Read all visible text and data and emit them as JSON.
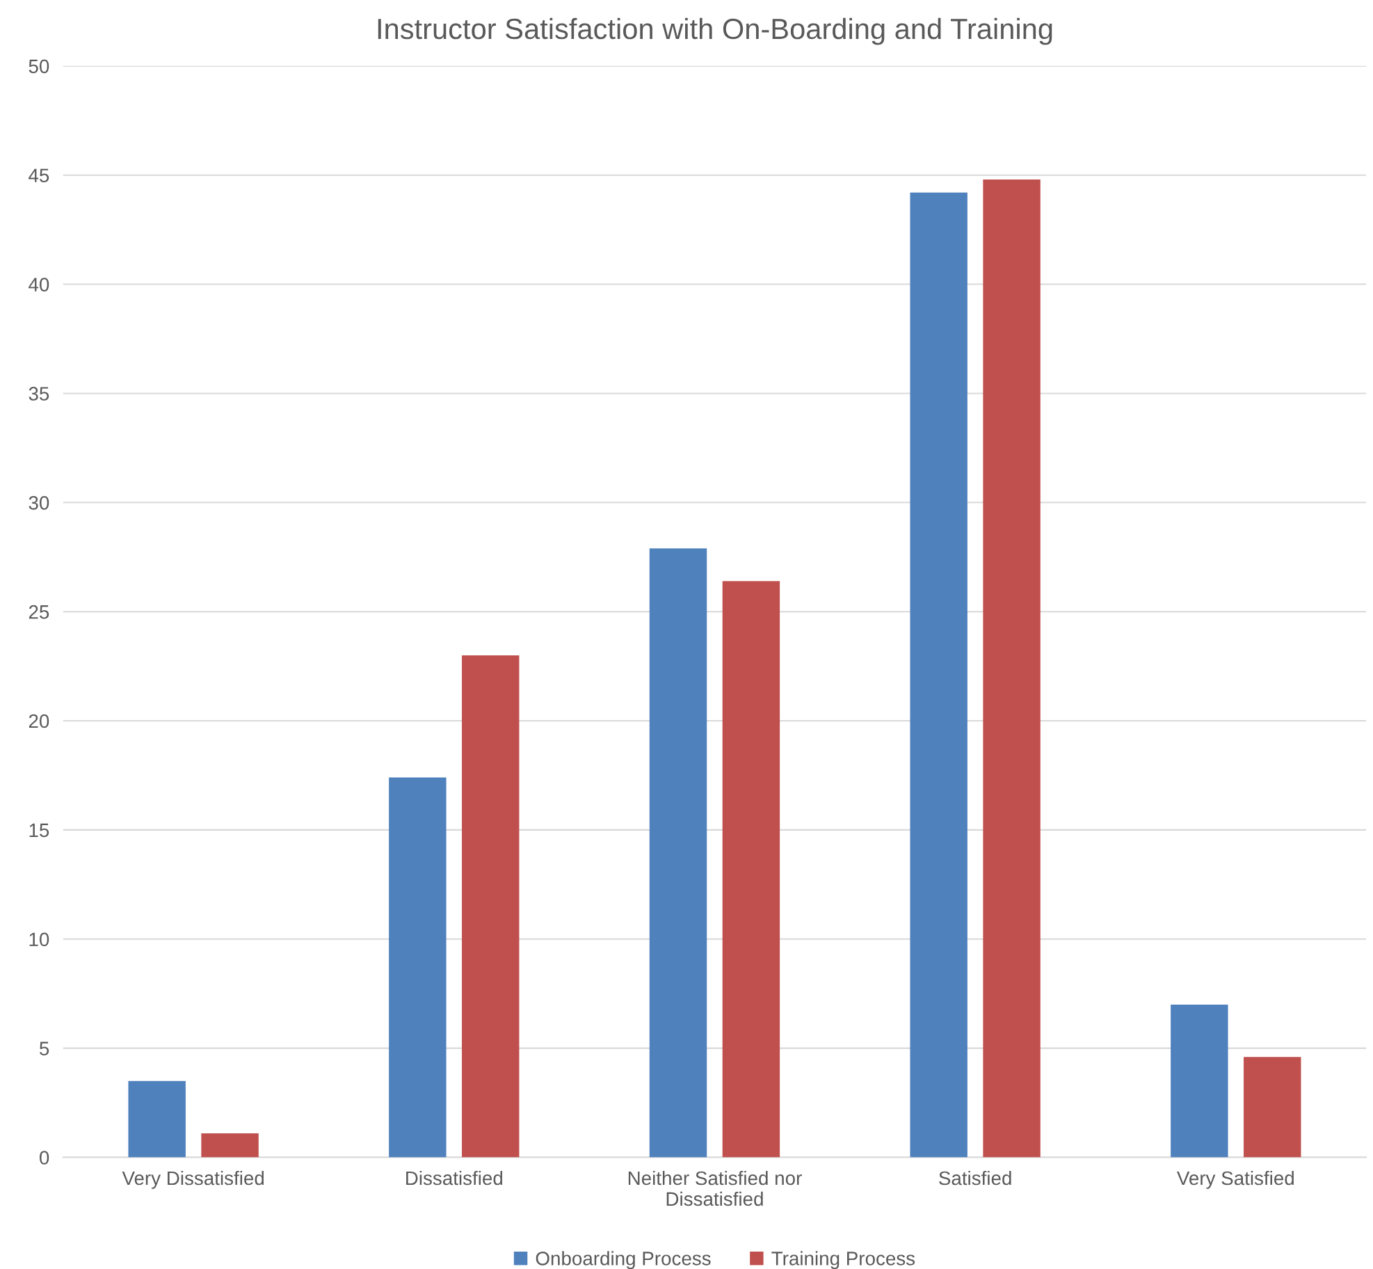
{
  "chart_data": {
    "type": "bar",
    "title": "Instructor Satisfaction with On-Boarding and Training",
    "categories": [
      "Very Dissatisfied",
      "Dissatisfied",
      "Neither Satisfied nor Dissatisfied",
      "Satisfied",
      "Very Satisfied"
    ],
    "series": [
      {
        "name": "Onboarding Process",
        "color": "#4f81bd",
        "values": [
          3.5,
          17.4,
          27.9,
          44.2,
          7.0
        ]
      },
      {
        "name": "Training Process",
        "color": "#c0504d",
        "values": [
          1.1,
          23.0,
          26.4,
          44.8,
          4.6
        ]
      }
    ],
    "ylim": [
      0,
      50
    ],
    "yticks": [
      0,
      5,
      10,
      15,
      20,
      25,
      30,
      35,
      40,
      45,
      50
    ],
    "grid": "y",
    "legend": "bottom"
  }
}
